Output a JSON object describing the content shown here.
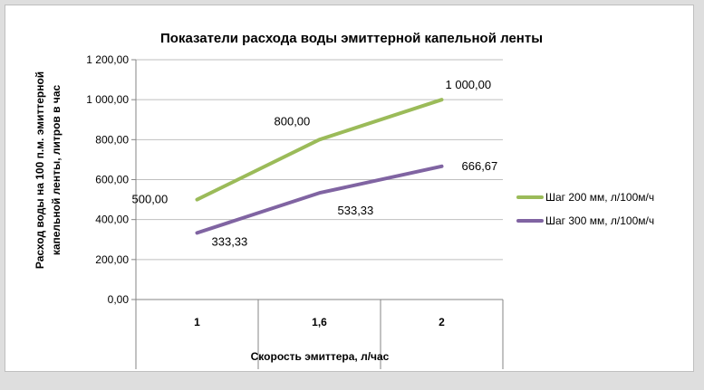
{
  "chart_data": {
    "type": "line",
    "title": "Показатели расхода воды эмиттерной капельной ленты",
    "xlabel": "Скорость эмиттера, л/час",
    "ylabel_line1": "Расход воды на 100 п.м. эмиттерной",
    "ylabel_line2": "капельной ленты, литров в час",
    "categories": [
      "1",
      "1,6",
      "2"
    ],
    "ylim": [
      0,
      1200
    ],
    "yticks": [
      "0,00",
      "200,00",
      "400,00",
      "600,00",
      "800,00",
      "1 000,00",
      "1 200,00"
    ],
    "grid": "horizontal",
    "legend_position": "right",
    "series": [
      {
        "name": "Шаг 200 мм, л/100м/ч",
        "color": "#9bbb59",
        "values": [
          500,
          800,
          1000
        ],
        "labels": [
          "500,00",
          "800,00",
          "1 000,00"
        ]
      },
      {
        "name": "Шаг 300 мм, л/100м/ч",
        "color": "#8064a2",
        "values": [
          333.33,
          533.33,
          666.67
        ],
        "labels": [
          "333,33",
          "533,33",
          "666,67"
        ]
      }
    ]
  }
}
